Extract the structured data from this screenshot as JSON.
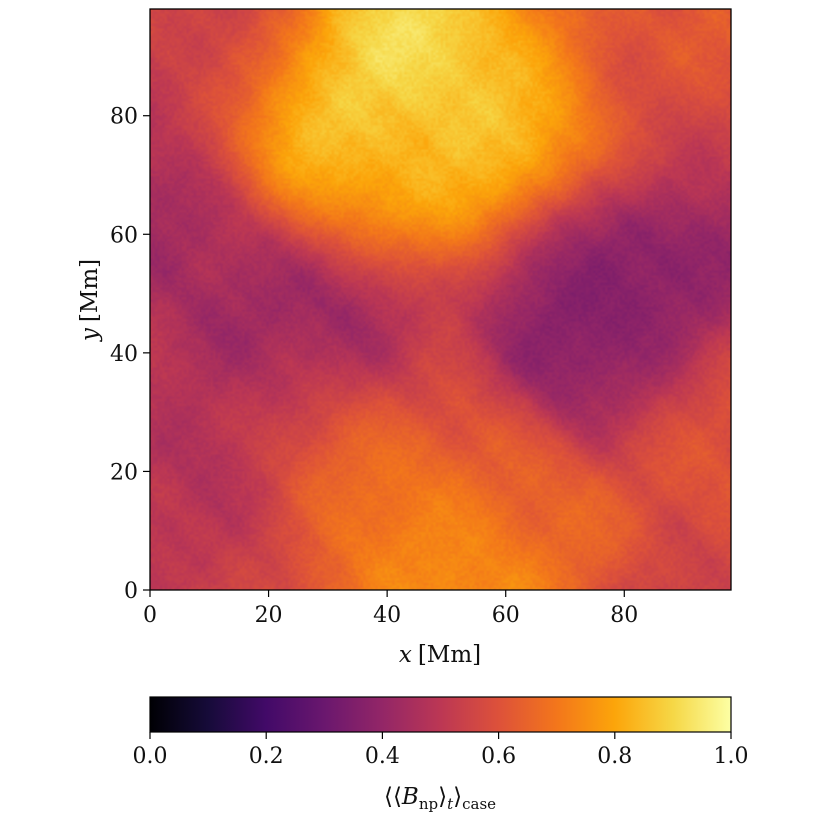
{
  "chart_data": {
    "type": "heatmap",
    "title": "",
    "xlabel_var": "x",
    "xlabel_unit": "[Mm]",
    "ylabel_var": "y",
    "ylabel_unit": "[Mm]",
    "xlim": [
      0,
      98
    ],
    "ylim": [
      0,
      98
    ],
    "x_ticks": [
      0,
      20,
      40,
      60,
      80
    ],
    "y_ticks": [
      0,
      20,
      40,
      60,
      80
    ],
    "colormap": "inferno",
    "colorbar": {
      "label_main": "⟨⟨B",
      "label_sub_np": "np",
      "label_mid": "⟩",
      "label_sub_t": "t",
      "label_close": "⟩",
      "label_sub_case": "case",
      "range": [
        0,
        1
      ],
      "ticks": [
        "0.0",
        "0.2",
        "0.4",
        "0.6",
        "0.8",
        "1.0"
      ],
      "placement": "bottom"
    },
    "grid": false,
    "features": [
      {
        "x": 50,
        "y": 88,
        "value": 0.95
      },
      {
        "x": 32,
        "y": 74,
        "value": 0.88
      },
      {
        "x": 45,
        "y": 78,
        "value": 0.82
      },
      {
        "x": 60,
        "y": 86,
        "value": 0.8
      },
      {
        "x": 80,
        "y": 52,
        "value": 0.3
      },
      {
        "x": 78,
        "y": 42,
        "value": 0.36
      },
      {
        "x": 8,
        "y": 55,
        "value": 0.42
      },
      {
        "x": 10,
        "y": 12,
        "value": 0.44
      },
      {
        "x": 30,
        "y": 45,
        "value": 0.45
      },
      {
        "x": 47,
        "y": 8,
        "value": 0.8
      },
      {
        "x": 60,
        "y": 12,
        "value": 0.72
      },
      {
        "x": 35,
        "y": 22,
        "value": 0.64
      },
      {
        "x": 95,
        "y": 25,
        "value": 0.58
      },
      {
        "x": 90,
        "y": 80,
        "value": 0.62
      },
      {
        "x": 5,
        "y": 90,
        "value": 0.55
      }
    ],
    "background_value": 0.56
  }
}
